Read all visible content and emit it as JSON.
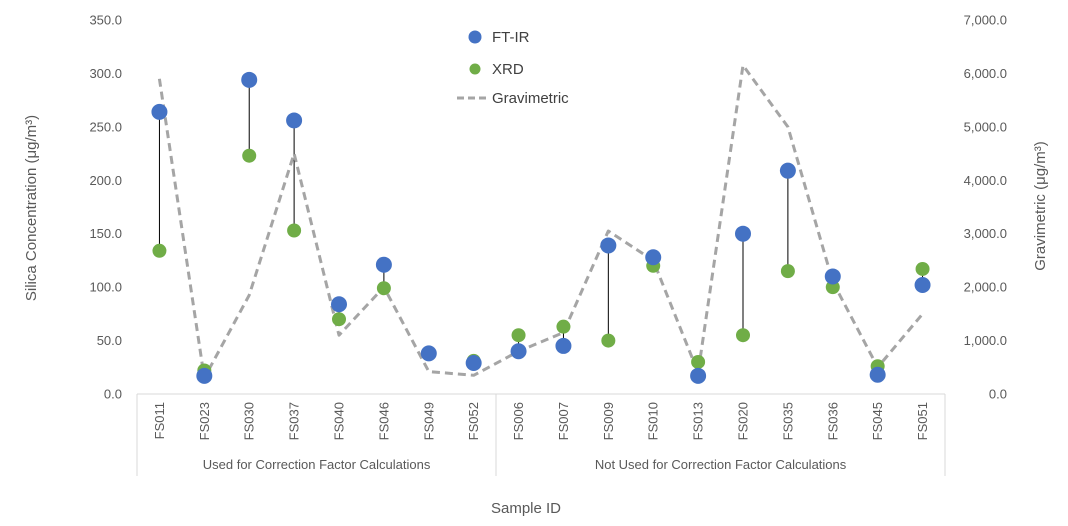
{
  "chart_data": {
    "type": "scatter",
    "xlabel": "Sample ID",
    "ylabel_left": "Silica Concentration (μg/m³)",
    "ylabel_right": "Gravimetric (μg/m³)",
    "ylim_left": [
      0,
      350
    ],
    "ylim_right": [
      0,
      7000
    ],
    "yticks_left": [
      "0.0",
      "50.0",
      "100.0",
      "150.0",
      "200.0",
      "250.0",
      "300.0",
      "350.0"
    ],
    "yticks_right": [
      "0.0",
      "1,000.0",
      "2,000.0",
      "3,000.0",
      "4,000.0",
      "5,000.0",
      "6,000.0",
      "7,000.0"
    ],
    "grid": false,
    "legend_position": "top-center",
    "categories": [
      "FS011",
      "FS023",
      "FS030",
      "FS037",
      "FS040",
      "FS046",
      "FS049",
      "FS052",
      "FS006",
      "FS007",
      "FS009",
      "FS010",
      "FS013",
      "FS020",
      "FS035",
      "FS036",
      "FS045",
      "FS051"
    ],
    "groups": [
      {
        "label": "Used for Correction Factor Calculations",
        "count": 8
      },
      {
        "label": "Not Used for Correction Factor Calculations",
        "count": 10
      }
    ],
    "series": [
      {
        "name": "FT-IR",
        "axis": "left",
        "style": "marker",
        "color": "#4472C4",
        "values": [
          264,
          17,
          294,
          256,
          84,
          121,
          38,
          29,
          40,
          45,
          139,
          128,
          17,
          150,
          209,
          110,
          18,
          102
        ]
      },
      {
        "name": "XRD",
        "axis": "left",
        "style": "marker",
        "color": "#70AD47",
        "values": [
          134,
          22,
          223,
          153,
          70,
          99,
          38,
          31,
          55,
          63,
          50,
          120,
          30,
          55,
          115,
          100,
          26,
          117
        ]
      },
      {
        "name": "Gravimetric",
        "axis": "right",
        "style": "dashed-line",
        "color": "#A5A5A5",
        "values": [
          5900,
          300,
          1850,
          4500,
          1100,
          2000,
          420,
          350,
          800,
          1150,
          3050,
          2500,
          400,
          6150,
          5000,
          2100,
          500,
          1500
        ]
      }
    ],
    "connector_color": "#000000"
  }
}
